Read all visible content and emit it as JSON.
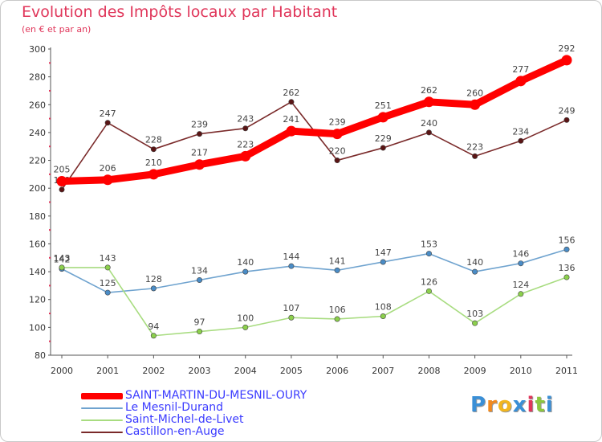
{
  "header": {
    "title": "Evolution des Impôts locaux par Habitant",
    "subtitle": "(en € et par an)"
  },
  "brand": {
    "letters": [
      "P",
      "r",
      "o",
      "x",
      "i",
      "t",
      "i"
    ],
    "colors": [
      "#3a8fd6",
      "#f28a1e",
      "#f2b61e",
      "#3a8fd6",
      "#e0365a",
      "#8cc63f",
      "#3a8fd6"
    ]
  },
  "chart_data": {
    "type": "line",
    "title": "Evolution des Impôts locaux par Habitant",
    "subtitle": "(en € et par an)",
    "x": [
      "2000",
      "2001",
      "2002",
      "2003",
      "2004",
      "2005",
      "2006",
      "2007",
      "2008",
      "2009",
      "2010",
      "2011"
    ],
    "ylim": [
      80,
      300
    ],
    "yticks": [
      80,
      100,
      120,
      140,
      160,
      180,
      200,
      220,
      240,
      260,
      280,
      300
    ],
    "grid": false,
    "legend_position": "bottom-left",
    "series": [
      {
        "name": "SAINT-MARTIN-DU-MESNIL-OURY",
        "color": "#ff0000",
        "marker_color": "#ff0000",
        "emphasis": true,
        "values": [
          205,
          206,
          210,
          217,
          223,
          241,
          239,
          251,
          262,
          260,
          277,
          292
        ]
      },
      {
        "name": "Le Mesnil-Durand",
        "color": "#6fa3cf",
        "marker_color": "#4a8cc6",
        "emphasis": false,
        "values": [
          142,
          125,
          128,
          134,
          140,
          144,
          141,
          147,
          153,
          140,
          146,
          156
        ]
      },
      {
        "name": "Saint-Michel-de-Livet",
        "color": "#a8dc80",
        "marker_color": "#8cd04c",
        "emphasis": false,
        "values": [
          143,
          143,
          94,
          97,
          100,
          107,
          106,
          108,
          126,
          103,
          124,
          136
        ]
      },
      {
        "name": "Castillon-en-Auge",
        "color": "#7a2a2a",
        "marker_color": "#5a1515",
        "emphasis": false,
        "values": [
          199,
          247,
          228,
          239,
          243,
          262,
          220,
          229,
          240,
          223,
          234,
          249
        ]
      }
    ]
  }
}
